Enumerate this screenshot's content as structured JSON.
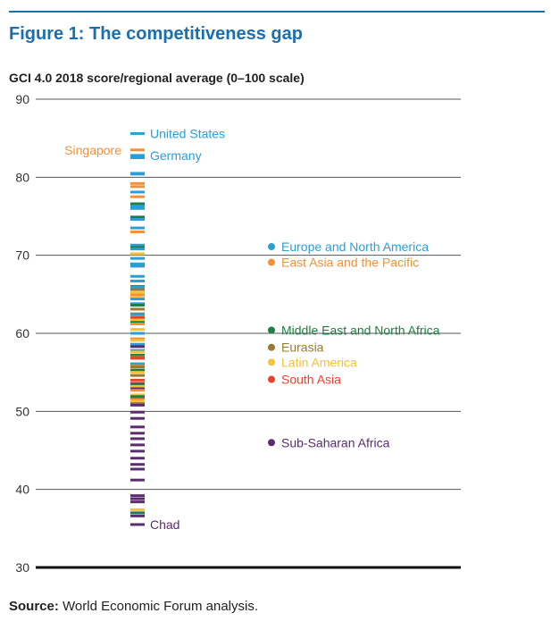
{
  "figure": {
    "title": "Figure 1: The competitiveness gap",
    "subtitle": "GCI 4.0 2018 score/regional average (0–100 scale)",
    "source_label": "Source:",
    "source_text": "World Economic Forum analysis."
  },
  "colors": {
    "title": "#1b6fae",
    "rule": "#1b6fae",
    "europe_north_america": "#2a9fd6",
    "east_asia_pacific": "#f0913a",
    "middle_east_north_africa": "#1e7f42",
    "eurasia": "#9b7a2e",
    "latin_america": "#f7c237",
    "south_asia": "#e8412c",
    "sub_saharan_africa": "#5b2c6f",
    "grid": "#555555",
    "axis_text": "#333333"
  },
  "chart_data": {
    "type": "scatter",
    "title": "",
    "ylabel": "",
    "ylim": [
      30,
      90
    ],
    "yticks": [
      90,
      80,
      70,
      60,
      50,
      40,
      30
    ],
    "grid": true,
    "country_annotations": [
      {
        "label": "United States",
        "value": 85.6,
        "region": "europe_north_america"
      },
      {
        "label": "Germany",
        "value": 82.8,
        "region": "europe_north_america"
      },
      {
        "label": "Singapore",
        "value": 83.5,
        "region": "east_asia_pacific"
      },
      {
        "label": "Chad",
        "value": 35.5,
        "region": "sub_saharan_africa"
      }
    ],
    "series": [
      {
        "name": "Europe and North America",
        "region": "europe_north_america",
        "average": 71.1,
        "values": [
          85.6,
          82.8,
          82.6,
          82.5,
          80.5,
          80.4,
          78.1,
          76.3,
          76.0,
          74.6,
          73.5,
          71.3,
          70.8,
          69.6,
          68.9,
          68.6,
          67.3,
          66.7,
          65.9,
          64.4,
          63.8,
          62.4,
          60.0,
          58.6,
          57.8,
          56.1
        ]
      },
      {
        "name": "East Asia and the Pacific",
        "region": "east_asia_pacific",
        "average": 69.1,
        "values": [
          83.5,
          79.2,
          78.8,
          77.5,
          73.0,
          70.2,
          64.9,
          62.1,
          61.2,
          59.3,
          55.8,
          53.7,
          52.7,
          51.5
        ]
      },
      {
        "name": "Middle East and North Africa",
        "region": "middle_east_north_africa",
        "average": 60.4,
        "values": [
          76.6,
          74.9,
          71.0,
          66.0,
          63.6,
          61.4,
          57.2,
          55.3,
          53.4,
          51.9,
          37.0
        ]
      },
      {
        "name": "Eurasia",
        "region": "eurasia",
        "average": 58.2,
        "values": [
          65.6,
          63.1,
          62.5,
          57.0,
          55.7,
          54.6,
          51.0
        ]
      },
      {
        "name": "Latin America",
        "region": "latin_america",
        "average": 56.3,
        "values": [
          70.2,
          65.2,
          64.5,
          61.7,
          60.5,
          59.1,
          57.6,
          55.0,
          53.2,
          52.1,
          51.3,
          37.4
        ]
      },
      {
        "name": "South Asia",
        "region": "south_asia",
        "average": 54.1,
        "values": [
          62.0,
          56.8,
          54.0,
          51.6
        ]
      },
      {
        "name": "Sub-Saharan Africa",
        "region": "sub_saharan_africa",
        "average": 46.0,
        "values": [
          58.3,
          53.5,
          52.9,
          50.8,
          49.9,
          49.1,
          48.0,
          47.2,
          46.5,
          45.7,
          44.9,
          44.0,
          43.2,
          42.6,
          41.2,
          39.2,
          38.8,
          38.4,
          36.6,
          35.5
        ]
      }
    ]
  }
}
